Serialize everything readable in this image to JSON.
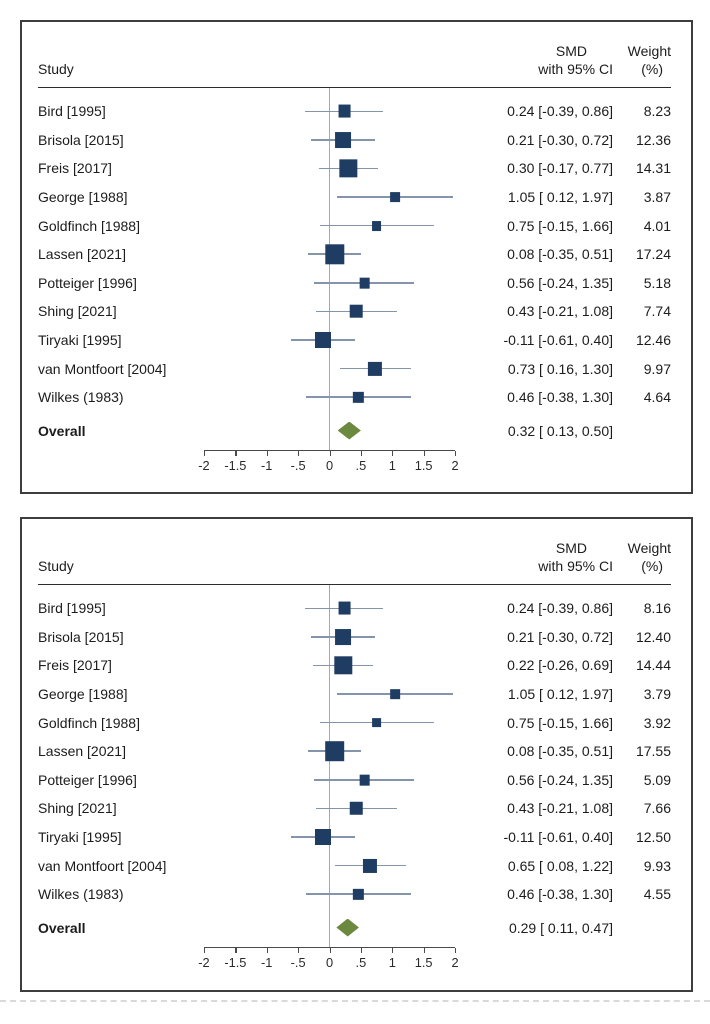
{
  "accent_colors": {
    "marker_square": "#1f3c63",
    "ci_line": "#8494ab",
    "overall_diamond": "#6b8a3f",
    "zero_line": "#a9a9a9",
    "panel_border": "#3d3d3d"
  },
  "panels": [
    {
      "header": {
        "study": "Study",
        "smd_line1": "SMD",
        "smd_line2": "with 95% CI",
        "weight_line1": "Weight",
        "weight_line2": "(%)"
      }
    },
    {
      "header": {
        "study": "Study",
        "smd_line1": "SMD",
        "smd_line2": "with 95% CI",
        "weight_line1": "Weight",
        "weight_line2": "(%)"
      }
    }
  ],
  "chart_data": [
    {
      "type": "scatter",
      "chart_kind": "forest-plot",
      "title": "",
      "xlabel": "",
      "xlim": [
        -2,
        2
      ],
      "x_ticks": [
        -2,
        -1.5,
        -1,
        -0.5,
        0,
        0.5,
        1,
        1.5,
        2
      ],
      "x_tick_labels": [
        "-2",
        "-1.5",
        "-1",
        "-.5",
        "0",
        ".5",
        "1",
        "1.5",
        "2"
      ],
      "grid": false,
      "studies": [
        {
          "label": "Bird [1995]",
          "smd": 0.24,
          "ci_low": -0.39,
          "ci_high": 0.86,
          "weight": 8.23
        },
        {
          "label": "Brisola [2015]",
          "smd": 0.21,
          "ci_low": -0.3,
          "ci_high": 0.72,
          "weight": 12.36
        },
        {
          "label": "Freis [2017]",
          "smd": 0.3,
          "ci_low": -0.17,
          "ci_high": 0.77,
          "weight": 14.31
        },
        {
          "label": "George [1988]",
          "smd": 1.05,
          "ci_low": 0.12,
          "ci_high": 1.97,
          "weight": 3.87
        },
        {
          "label": "Goldfinch [1988]",
          "smd": 0.75,
          "ci_low": -0.15,
          "ci_high": 1.66,
          "weight": 4.01
        },
        {
          "label": "Lassen [2021]",
          "smd": 0.08,
          "ci_low": -0.35,
          "ci_high": 0.51,
          "weight": 17.24
        },
        {
          "label": "Potteiger [1996]",
          "smd": 0.56,
          "ci_low": -0.24,
          "ci_high": 1.35,
          "weight": 5.18
        },
        {
          "label": "Shing [2021]",
          "smd": 0.43,
          "ci_low": -0.21,
          "ci_high": 1.08,
          "weight": 7.74
        },
        {
          "label": "Tiryaki [1995]",
          "smd": -0.11,
          "ci_low": -0.61,
          "ci_high": 0.4,
          "weight": 12.46
        },
        {
          "label": "van Montfoort [2004]",
          "smd": 0.73,
          "ci_low": 0.16,
          "ci_high": 1.3,
          "weight": 9.97
        },
        {
          "label": "Wilkes (1983)",
          "smd": 0.46,
          "ci_low": -0.38,
          "ci_high": 1.3,
          "weight": 4.64
        }
      ],
      "overall": {
        "label": "Overall",
        "smd": 0.32,
        "ci_low": 0.13,
        "ci_high": 0.5
      }
    },
    {
      "type": "scatter",
      "chart_kind": "forest-plot",
      "title": "",
      "xlabel": "",
      "xlim": [
        -2,
        2
      ],
      "x_ticks": [
        -2,
        -1.5,
        -1,
        -0.5,
        0,
        0.5,
        1,
        1.5,
        2
      ],
      "x_tick_labels": [
        "-2",
        "-1.5",
        "-1",
        "-.5",
        "0",
        ".5",
        "1",
        "1.5",
        "2"
      ],
      "grid": false,
      "studies": [
        {
          "label": "Bird [1995]",
          "smd": 0.24,
          "ci_low": -0.39,
          "ci_high": 0.86,
          "weight": 8.16
        },
        {
          "label": "Brisola [2015]",
          "smd": 0.21,
          "ci_low": -0.3,
          "ci_high": 0.72,
          "weight": 12.4
        },
        {
          "label": "Freis [2017]",
          "smd": 0.22,
          "ci_low": -0.26,
          "ci_high": 0.69,
          "weight": 14.44
        },
        {
          "label": "George [1988]",
          "smd": 1.05,
          "ci_low": 0.12,
          "ci_high": 1.97,
          "weight": 3.79
        },
        {
          "label": "Goldfinch [1988]",
          "smd": 0.75,
          "ci_low": -0.15,
          "ci_high": 1.66,
          "weight": 3.92
        },
        {
          "label": "Lassen [2021]",
          "smd": 0.08,
          "ci_low": -0.35,
          "ci_high": 0.51,
          "weight": 17.55
        },
        {
          "label": "Potteiger [1996]",
          "smd": 0.56,
          "ci_low": -0.24,
          "ci_high": 1.35,
          "weight": 5.09
        },
        {
          "label": "Shing [2021]",
          "smd": 0.43,
          "ci_low": -0.21,
          "ci_high": 1.08,
          "weight": 7.66
        },
        {
          "label": "Tiryaki [1995]",
          "smd": -0.11,
          "ci_low": -0.61,
          "ci_high": 0.4,
          "weight": 12.5
        },
        {
          "label": "van Montfoort [2004]",
          "smd": 0.65,
          "ci_low": 0.08,
          "ci_high": 1.22,
          "weight": 9.93
        },
        {
          "label": "Wilkes (1983)",
          "smd": 0.46,
          "ci_low": -0.38,
          "ci_high": 1.3,
          "weight": 4.55
        }
      ],
      "overall": {
        "label": "Overall",
        "smd": 0.29,
        "ci_low": 0.11,
        "ci_high": 0.47
      }
    }
  ]
}
